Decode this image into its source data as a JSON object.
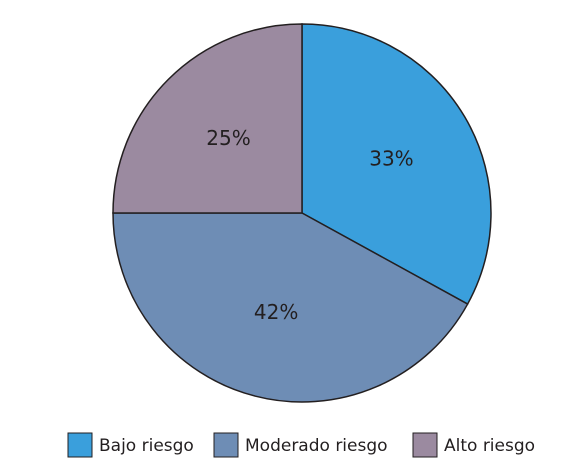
{
  "chart_data": {
    "type": "pie",
    "categories": [
      "Bajo riesgo",
      "Moderado riesgo",
      "Alto riesgo"
    ],
    "values": [
      33,
      42,
      25
    ],
    "value_labels": [
      "33%",
      "42%",
      "25%"
    ],
    "colors": [
      "#3a9fdc",
      "#6e8db5",
      "#9b8aa0"
    ],
    "legend": "bottom"
  }
}
